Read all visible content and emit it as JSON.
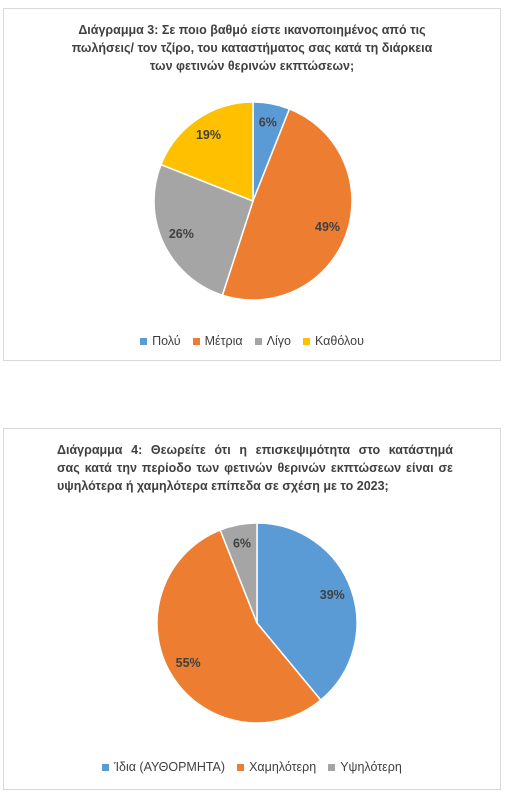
{
  "chart_data": [
    {
      "type": "pie",
      "title": [
        "Διάγραμμα 3: Σε ποιο βαθμό είστε ικανοποιημένος από τις",
        "πωλήσεις/ τον τζίρο, του καταστήματος σας κατά τη διάρκεια",
        "των φετινών θερινών εκπτώσεων;"
      ],
      "categories": [
        "Πολύ",
        "Μέτρια",
        "Λίγο",
        "Καθόλου"
      ],
      "values": [
        6,
        49,
        26,
        19
      ],
      "value_labels": [
        "6%",
        "49%",
        "26%",
        "19%"
      ],
      "colors": [
        "#5b9bd5",
        "#ed7d31",
        "#a5a5a5",
        "#ffc000"
      ]
    },
    {
      "type": "pie",
      "title": [
        "Διάγραμμα 4: Θεωρείτε ότι η επισκεψιμότητα στο κατάστημά",
        "σας κατά την περίοδο των φετινών θερινών εκπτώσεων είναι σε",
        "υψηλότερα ή χαμηλότερα επίπεδα σε σχέση με το 2023;"
      ],
      "categories": [
        "Ίδια (ΑΥΘΟΡΜΗΤΑ)",
        "Χαμηλότερη",
        "Υψηλότερη"
      ],
      "values": [
        39,
        55,
        6
      ],
      "value_labels": [
        "39%",
        "55%",
        "6%"
      ],
      "colors": [
        "#5b9bd5",
        "#ed7d31",
        "#a5a5a5"
      ]
    }
  ]
}
